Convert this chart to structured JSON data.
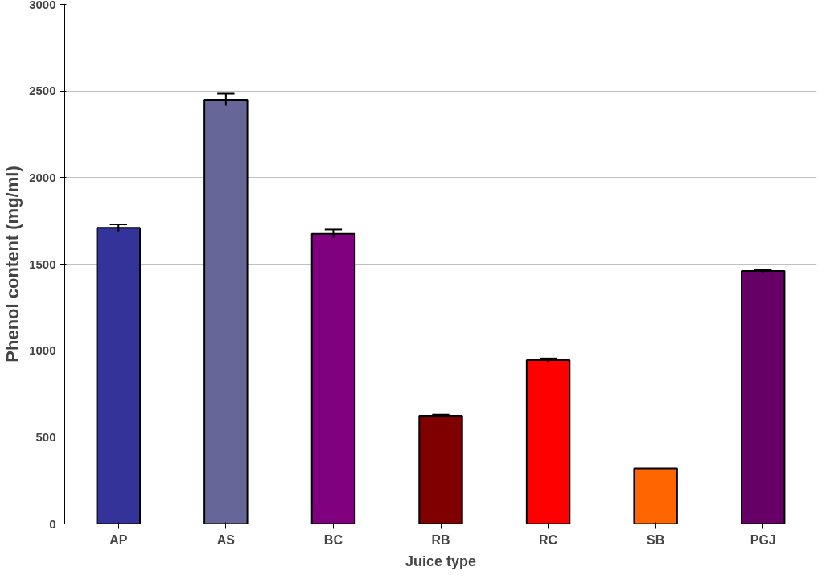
{
  "chart_data": {
    "type": "bar",
    "xlabel": "Juice type",
    "ylabel": "Phenol content (mg/ml)",
    "categories": [
      "AP",
      "AS",
      "BC",
      "RB",
      "RC",
      "SB",
      "PGJ"
    ],
    "values": [
      1710,
      2450,
      1675,
      625,
      945,
      320,
      1460
    ],
    "colors": [
      "#333399",
      "#666699",
      "#800080",
      "#800000",
      "#ff0000",
      "#ff6600",
      "#660066"
    ],
    "errors": [
      20,
      35,
      25,
      5,
      10,
      null,
      10
    ],
    "ylim": [
      0,
      3000
    ],
    "yticks": [
      0,
      500,
      1000,
      1500,
      2000,
      2500,
      3000
    ],
    "grid": "y"
  }
}
